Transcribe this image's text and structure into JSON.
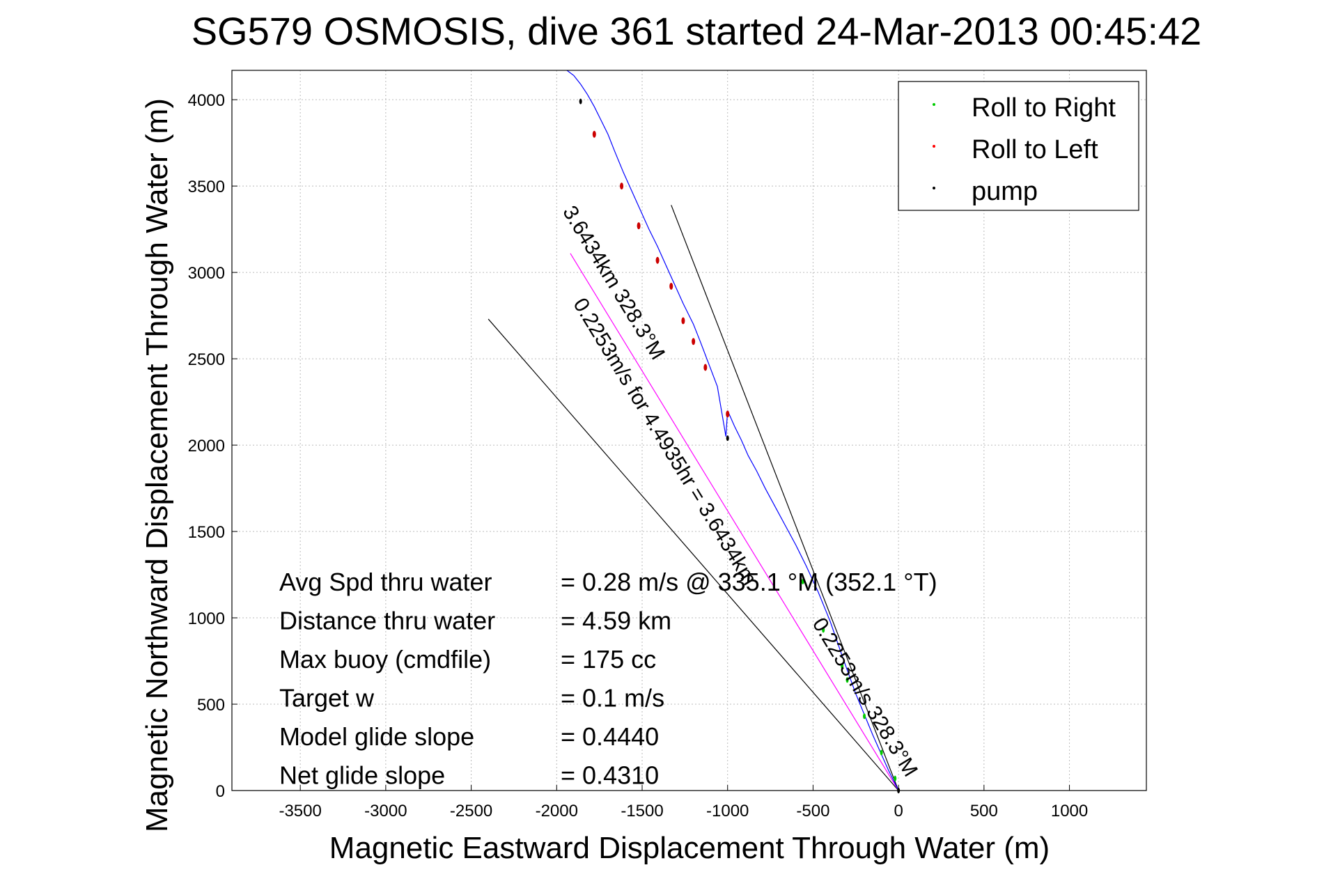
{
  "chart_data": {
    "type": "scatter",
    "title": "SG579 OSMOSIS, dive 361 started 24-Mar-2013 00:45:42",
    "xlabel": "Magnetic Eastward Displacement Through Water (m)",
    "ylabel": "Magnetic Northward Displacement Through Water (m)",
    "xlim": [
      -3900,
      1450
    ],
    "ylim": [
      0,
      4170
    ],
    "xticks": [
      -3500,
      -3000,
      -2500,
      -2000,
      -1500,
      -1000,
      -500,
      0,
      500,
      1000
    ],
    "yticks": [
      0,
      500,
      1000,
      1500,
      2000,
      2500,
      3000,
      3500,
      4000
    ],
    "grid": true,
    "legend_position": "top-right",
    "legend": [
      {
        "label": "Roll to Right",
        "color": "#00cc00"
      },
      {
        "label": "Roll to Left",
        "color": "#ff0000"
      },
      {
        "label": "pump",
        "color": "#000000"
      }
    ],
    "track": {
      "color": "#0000ff",
      "x": [
        0,
        -60,
        -150,
        -250,
        -330,
        -400,
        -470,
        -540,
        -600,
        -660,
        -720,
        -780,
        -830,
        -880,
        -920,
        -960,
        -1000,
        -1010,
        -1060,
        -1110,
        -1160,
        -1200,
        -1260,
        -1310,
        -1360,
        -1410,
        -1460,
        -1510,
        -1560,
        -1610,
        -1660,
        -1700,
        -1740,
        -1780,
        -1820,
        -1860,
        -1900,
        -1940
      ],
      "y": [
        0,
        120,
        320,
        560,
        780,
        980,
        1150,
        1300,
        1420,
        1530,
        1640,
        1750,
        1850,
        1940,
        2030,
        2110,
        2200,
        2050,
        2340,
        2470,
        2600,
        2700,
        2820,
        2930,
        3040,
        3150,
        3250,
        3360,
        3470,
        3580,
        3700,
        3800,
        3880,
        3960,
        4030,
        4090,
        4140,
        4170
      ]
    },
    "roll_right_points": {
      "x": [
        -560,
        -440,
        -330,
        -300,
        -200,
        -100,
        -20
      ],
      "y": [
        1210,
        930,
        720,
        640,
        430,
        220,
        70
      ]
    },
    "roll_left_points": {
      "x": [
        -1000,
        -1130,
        -1200,
        -1260,
        -1330,
        -1410,
        -1520,
        -1620,
        -1780
      ],
      "y": [
        2180,
        2450,
        2600,
        2720,
        2920,
        3070,
        3270,
        3500,
        3800
      ]
    },
    "pump_points": {
      "x": [
        0,
        -1000,
        -1860
      ],
      "y": [
        0,
        2040,
        3990
      ]
    },
    "reference_lines": [
      {
        "color": "#000000",
        "x": [
          0,
          -2400
        ],
        "y": [
          0,
          2730
        ]
      },
      {
        "color": "#000000",
        "x": [
          0,
          -1330
        ],
        "y": [
          0,
          3390
        ]
      }
    ],
    "magenta_line": {
      "color": "#ff00ff",
      "x": [
        0,
        -1920
      ],
      "y": [
        0,
        3110
      ]
    },
    "annotations": [
      {
        "text": "3.6434km 328.3°M",
        "x": -1700,
        "y": 2920
      },
      {
        "text": "0.2253m/s for 4.4935hr = 3.6434km",
        "x": -1400,
        "y": 2000
      },
      {
        "text": "0.2253m/s 328.3°M",
        "x": -230,
        "y": 520
      }
    ],
    "summary": [
      {
        "label": "Avg Spd thru water",
        "value": "=  0.28 m/s @ 335.1 °M (352.1 °T)"
      },
      {
        "label": "Distance thru water",
        "value": "=  4.59 km"
      },
      {
        "label": "Max buoy (cmdfile)",
        "value": "= 175 cc"
      },
      {
        "label": "Target w",
        "value": "= 0.1 m/s"
      },
      {
        "label": "Model glide slope",
        "value": "= 0.4440"
      },
      {
        "label": "Net glide slope",
        "value": "= 0.4310"
      }
    ]
  }
}
